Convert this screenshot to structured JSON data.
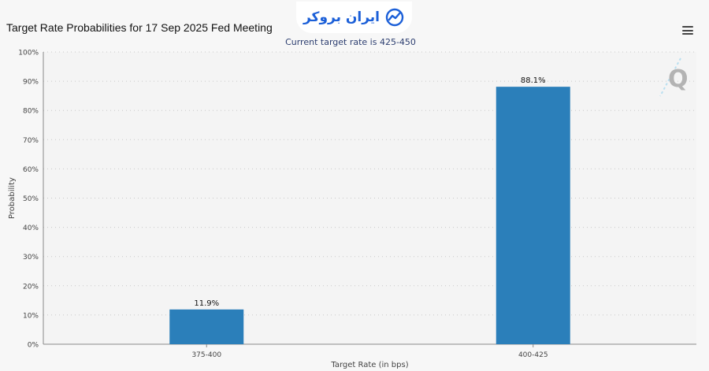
{
  "header": {
    "title": "Target Rate Probabilities for 17 Sep 2025 Fed Meeting",
    "subtitle": "Current target rate is 425-450",
    "logo_text": "ایران بروکر",
    "menu_icon": "hamburger-menu-icon",
    "watermark_letter": "Q"
  },
  "colors": {
    "bar": "#2b7fba",
    "grid": "#c8c8c8",
    "axis": "#888888",
    "logo": "#1b5fd8"
  },
  "chart_data": {
    "type": "bar",
    "title": "Target Rate Probabilities for 17 Sep 2025 Fed Meeting",
    "subtitle": "Current target rate is 425-450",
    "categories": [
      "375-400",
      "400-425"
    ],
    "values": [
      11.9,
      88.1
    ],
    "data_labels": [
      "11.9%",
      "88.1%"
    ],
    "xlabel": "Target Rate (in bps)",
    "ylabel": "Probability",
    "ylim": [
      0,
      100
    ],
    "yticks": [
      0,
      10,
      20,
      30,
      40,
      50,
      60,
      70,
      80,
      90,
      100
    ],
    "ytick_labels": [
      "0%",
      "10%",
      "20%",
      "30%",
      "40%",
      "50%",
      "60%",
      "70%",
      "80%",
      "90%",
      "100%"
    ],
    "grid": true,
    "legend": "none"
  }
}
